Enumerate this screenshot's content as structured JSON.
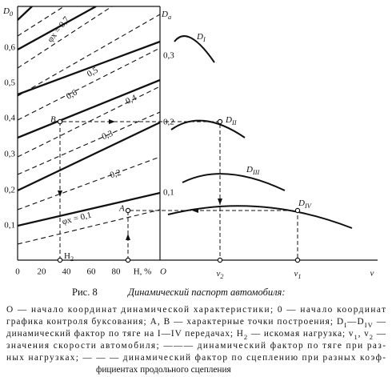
{
  "figure": {
    "left_axis": {
      "title": [
        "D",
        {
          "sub": "0"
        }
      ],
      "ticks": [
        "0,1",
        "0,2",
        "0,3",
        "0,4",
        "0,5",
        "0,6"
      ]
    },
    "right_axis": {
      "title": [
        "D",
        {
          "sub": "a"
        }
      ],
      "ticks": [
        "0,1",
        "0,2",
        "0,3"
      ],
      "origin": "O"
    },
    "h_axis": {
      "ticks": [
        "0",
        "20",
        "40",
        "60",
        "80"
      ],
      "label": "H, %"
    },
    "v_axis": {
      "label": "v",
      "ticks": [
        [
          "v",
          {
            "sub": "2"
          }
        ],
        [
          "v",
          {
            "sub": "1"
          }
        ]
      ]
    },
    "points": {
      "A": "A",
      "B": "B",
      "H": [
        "H",
        {
          "sub": "2"
        }
      ]
    },
    "phi_labels": {
      "first": "φx = 0,1",
      "others": [
        "0,2",
        "0,3",
        "0,4",
        "0,5",
        "0,6"
      ],
      "last": "φx = 0,7"
    },
    "curves": [
      [
        "D",
        {
          "sub": "I"
        }
      ],
      [
        "D",
        {
          "sub": "II"
        }
      ],
      [
        "D",
        {
          "sub": "III"
        }
      ],
      [
        "D",
        {
          "sub": "IV"
        }
      ]
    ]
  },
  "caption": {
    "number": "Рис. 8",
    "title": "Динамический паспорт автомобиля:",
    "lines": [
      [
        "O — начало координат динамической характеристики; 0 — начало координат"
      ],
      [
        "графика контроля буксования; A, B — характерные точки построения; D",
        {
          "sub": "I"
        },
        "—D",
        {
          "sub": "IV"
        },
        " —"
      ],
      [
        "динамический фактор по тяге на I—IV передачах; H",
        {
          "sub": "2"
        },
        " — искомая нагрузка; v",
        {
          "sub": "1"
        },
        ", v",
        {
          "sub": "2"
        },
        " —"
      ],
      [
        "значения скорости автомобиля; ——— динамический фактор по тяге при раз-"
      ],
      [
        "ных нагрузках; — — — динамический фактор по сцеплению при разных коэф-"
      ],
      [
        "фициентах продольного сцепления"
      ]
    ]
  }
}
